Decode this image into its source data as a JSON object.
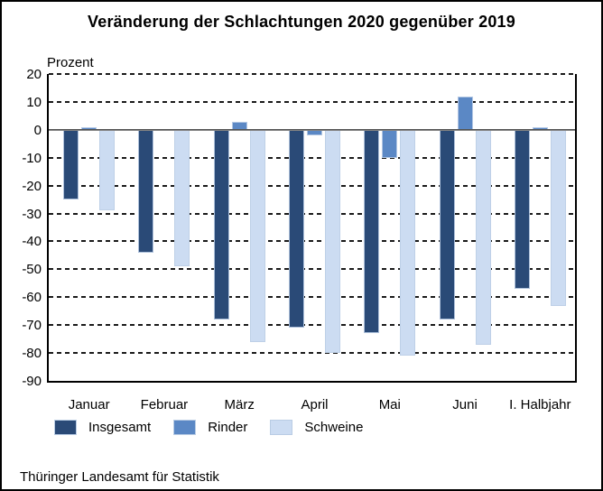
{
  "footer": {
    "source": "Thüringer Landesamt für Statistik"
  },
  "chart_data": {
    "type": "bar",
    "title": "Veränderung der Schlachtungen 2020 gegenüber 2019",
    "ylabel": "Prozent",
    "xlabel": "",
    "categories": [
      "Januar",
      "Februar",
      "März",
      "April",
      "Mai",
      "Juni",
      "I. Halbjahr"
    ],
    "series": [
      {
        "name": "Insgesamt",
        "color": "#2A4A77",
        "values": [
          -25,
          -44,
          -68,
          -71,
          -73,
          -68,
          -57
        ]
      },
      {
        "name": "Rinder",
        "color": "#5B88C5",
        "values": [
          1,
          0,
          3,
          -2,
          -10,
          12,
          1
        ]
      },
      {
        "name": "Schweine",
        "color": "#CCDCF2",
        "values": [
          -29,
          -49,
          -76,
          -80,
          -81,
          -77,
          -63
        ]
      }
    ],
    "ylim": [
      -90,
      20
    ],
    "ytick_step": 10,
    "grid": "dashed horizontal, solid zero line",
    "legend_position": "bottom"
  }
}
